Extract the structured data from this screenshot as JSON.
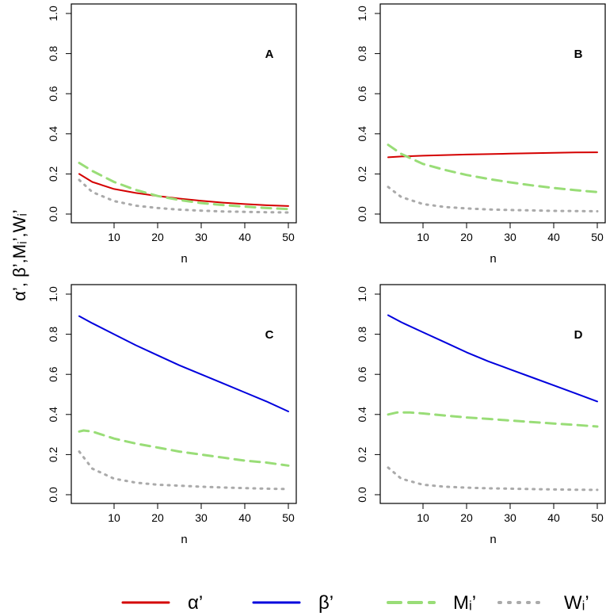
{
  "figure": {
    "shared_ylabel": "α’, β’,Mᵢ’,Wᵢ’",
    "legend": [
      {
        "key": "alpha",
        "label": "α’",
        "color": "#d40000",
        "style": "solid"
      },
      {
        "key": "beta",
        "label": "β’",
        "color": "#0000dd",
        "style": "solid"
      },
      {
        "key": "M",
        "label": "Mᵢ’",
        "color": "#99dd77",
        "style": "dashed"
      },
      {
        "key": "W",
        "label": "Wᵢ’",
        "color": "#aaaaaa",
        "style": "dotted"
      }
    ]
  },
  "chart_data": [
    {
      "panel": "A",
      "type": "line",
      "xlabel": "n",
      "ylabel": "",
      "xlim": [
        2,
        50
      ],
      "ylim": [
        0,
        1
      ],
      "xticks": [
        10,
        20,
        30,
        40,
        50
      ],
      "yticks": [
        0.0,
        0.2,
        0.4,
        0.6,
        0.8,
        1.0
      ],
      "series": [
        {
          "key": "alpha",
          "x": [
            2,
            5,
            10,
            15,
            20,
            25,
            30,
            35,
            40,
            45,
            50
          ],
          "values": [
            0.2,
            0.16,
            0.125,
            0.105,
            0.09,
            0.077,
            0.066,
            0.057,
            0.05,
            0.044,
            0.04
          ]
        },
        {
          "key": "M",
          "x": [
            2,
            5,
            10,
            15,
            20,
            25,
            30,
            35,
            40,
            45,
            50
          ],
          "values": [
            0.255,
            0.215,
            0.16,
            0.12,
            0.09,
            0.07,
            0.055,
            0.045,
            0.037,
            0.03,
            0.025
          ]
        },
        {
          "key": "W",
          "x": [
            2,
            5,
            10,
            15,
            20,
            25,
            30,
            35,
            40,
            45,
            50
          ],
          "values": [
            0.17,
            0.11,
            0.065,
            0.042,
            0.03,
            0.022,
            0.017,
            0.013,
            0.011,
            0.009,
            0.008
          ]
        }
      ]
    },
    {
      "panel": "B",
      "type": "line",
      "xlabel": "n",
      "ylabel": "",
      "xlim": [
        2,
        50
      ],
      "ylim": [
        0,
        1
      ],
      "xticks": [
        10,
        20,
        30,
        40,
        50
      ],
      "yticks": [
        0.0,
        0.2,
        0.4,
        0.6,
        0.8,
        1.0
      ],
      "series": [
        {
          "key": "alpha",
          "x": [
            2,
            5,
            10,
            15,
            20,
            25,
            30,
            35,
            40,
            45,
            50
          ],
          "values": [
            0.283,
            0.287,
            0.291,
            0.294,
            0.297,
            0.299,
            0.301,
            0.303,
            0.305,
            0.307,
            0.308
          ]
        },
        {
          "key": "M",
          "x": [
            2,
            5,
            10,
            15,
            20,
            25,
            30,
            35,
            40,
            45,
            50
          ],
          "values": [
            0.345,
            0.3,
            0.25,
            0.22,
            0.195,
            0.175,
            0.158,
            0.143,
            0.13,
            0.119,
            0.11
          ]
        },
        {
          "key": "W",
          "x": [
            2,
            5,
            10,
            15,
            20,
            25,
            30,
            35,
            40,
            45,
            50
          ],
          "values": [
            0.135,
            0.085,
            0.05,
            0.035,
            0.028,
            0.023,
            0.02,
            0.018,
            0.016,
            0.015,
            0.014
          ]
        }
      ]
    },
    {
      "panel": "C",
      "type": "line",
      "xlabel": "n",
      "ylabel": "",
      "xlim": [
        2,
        50
      ],
      "ylim": [
        0,
        1
      ],
      "xticks": [
        10,
        20,
        30,
        40,
        50
      ],
      "yticks": [
        0.0,
        0.2,
        0.4,
        0.6,
        0.8,
        1.0
      ],
      "series": [
        {
          "key": "beta",
          "x": [
            2,
            5,
            10,
            15,
            20,
            25,
            30,
            35,
            40,
            45,
            50
          ],
          "values": [
            0.89,
            0.855,
            0.8,
            0.745,
            0.695,
            0.645,
            0.6,
            0.555,
            0.51,
            0.465,
            0.415
          ]
        },
        {
          "key": "M",
          "x": [
            2,
            3,
            5,
            10,
            15,
            20,
            25,
            30,
            35,
            40,
            45,
            50
          ],
          "values": [
            0.315,
            0.32,
            0.315,
            0.28,
            0.255,
            0.235,
            0.215,
            0.2,
            0.185,
            0.17,
            0.16,
            0.145
          ]
        },
        {
          "key": "W",
          "x": [
            2,
            5,
            10,
            15,
            20,
            25,
            30,
            35,
            40,
            45,
            50
          ],
          "values": [
            0.215,
            0.13,
            0.08,
            0.06,
            0.05,
            0.045,
            0.04,
            0.036,
            0.033,
            0.03,
            0.028
          ]
        }
      ]
    },
    {
      "panel": "D",
      "type": "line",
      "xlabel": "n",
      "ylabel": "",
      "xlim": [
        2,
        50
      ],
      "ylim": [
        0,
        1
      ],
      "xticks": [
        10,
        20,
        30,
        40,
        50
      ],
      "yticks": [
        0.0,
        0.2,
        0.4,
        0.6,
        0.8,
        1.0
      ],
      "series": [
        {
          "key": "beta",
          "x": [
            2,
            5,
            10,
            15,
            20,
            25,
            30,
            35,
            40,
            45,
            50
          ],
          "values": [
            0.895,
            0.86,
            0.81,
            0.76,
            0.71,
            0.665,
            0.625,
            0.585,
            0.545,
            0.505,
            0.465
          ]
        },
        {
          "key": "M",
          "x": [
            2,
            4,
            7,
            10,
            15,
            20,
            25,
            30,
            35,
            40,
            45,
            50
          ],
          "values": [
            0.4,
            0.41,
            0.41,
            0.405,
            0.395,
            0.385,
            0.378,
            0.37,
            0.362,
            0.355,
            0.348,
            0.34
          ]
        },
        {
          "key": "W",
          "x": [
            2,
            5,
            10,
            15,
            20,
            25,
            30,
            35,
            40,
            45,
            50
          ],
          "values": [
            0.135,
            0.08,
            0.05,
            0.04,
            0.035,
            0.032,
            0.03,
            0.028,
            0.026,
            0.025,
            0.024
          ]
        }
      ]
    }
  ]
}
